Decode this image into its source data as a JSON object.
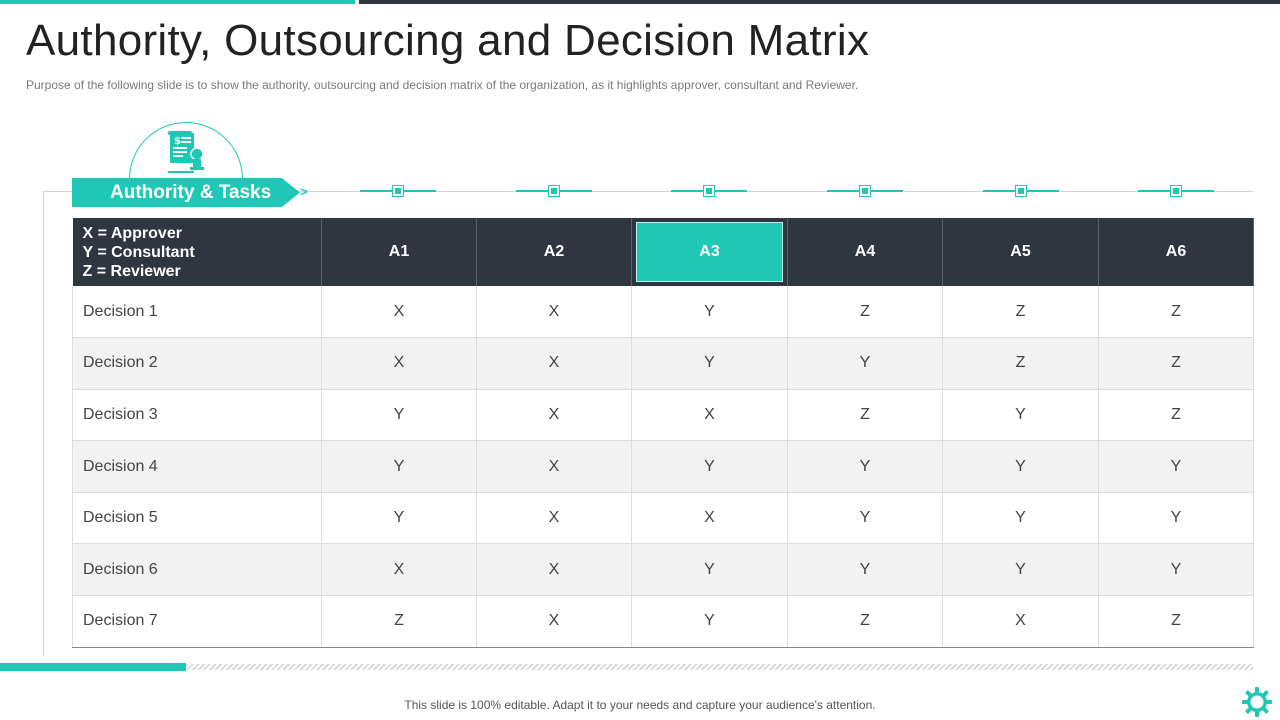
{
  "slide": {
    "title": "Authority, Outsourcing and Decision Matrix",
    "subtitle": "Purpose of the following slide is to show the authority, outsourcing and decision matrix of the organization, as it highlights approver,  consultant and Reviewer.",
    "banner_label": "Authority & Tasks",
    "footer": "This slide is 100% editable. Adapt it to your needs and capture your audience's attention.",
    "accent_color": "#1fc8b4",
    "header_color": "#2f3640"
  },
  "icons": {
    "banner_icon": "document-hand-icon",
    "corner_icon": "gear-icon"
  },
  "matrix": {
    "legend": [
      "X = Approver",
      "Y = Consultant",
      "Z = Reviewer"
    ],
    "columns": [
      "A1",
      "A2",
      "A3",
      "A4",
      "A5",
      "A6"
    ],
    "highlighted_column": "A3",
    "rows": [
      {
        "label": "Decision 1",
        "values": [
          "X",
          "X",
          "Y",
          "Z",
          "Z",
          "Z"
        ]
      },
      {
        "label": "Decision 2",
        "values": [
          "X",
          "X",
          "Y",
          "Y",
          "Z",
          "Z"
        ]
      },
      {
        "label": "Decision 3",
        "values": [
          "Y",
          "X",
          "X",
          "Z",
          "Y",
          "Z"
        ]
      },
      {
        "label": "Decision 4",
        "values": [
          "Y",
          "X",
          "Y",
          "Y",
          "Y",
          "Y"
        ]
      },
      {
        "label": "Decision 5",
        "values": [
          "Y",
          "X",
          "X",
          "Y",
          "Y",
          "Y"
        ]
      },
      {
        "label": "Decision 6",
        "values": [
          "X",
          "X",
          "Y",
          "Y",
          "Y",
          "Y"
        ]
      },
      {
        "label": "Decision 7",
        "values": [
          "Z",
          "X",
          "Y",
          "Z",
          "X",
          "Z"
        ]
      }
    ]
  }
}
